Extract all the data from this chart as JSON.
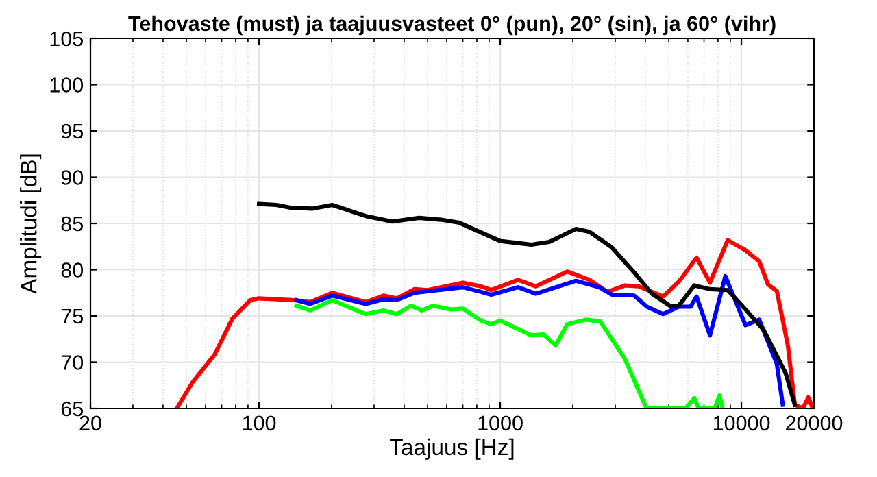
{
  "chart_data": {
    "type": "line",
    "title": "Tehovaste (must) ja taajuusvasteet 0° (pun), 20° (sin), ja 60° (vihr)",
    "xlabel": "Taajuus [Hz]",
    "ylabel": "Amplitudi [dB]",
    "log": "x",
    "grid": true,
    "legend": false,
    "marker": "none",
    "line_style": "solid",
    "xlim": [
      20,
      20000
    ],
    "xticks": [
      20,
      100,
      1000,
      10000,
      20000
    ],
    "ylim": [
      65,
      105
    ],
    "yticks": [
      65,
      70,
      75,
      80,
      85,
      90,
      95,
      100,
      105
    ],
    "series": [
      {
        "color": "#ff0000",
        "x": [
          45.6,
          52.9,
          65.4,
          77.5,
          91.9,
          100,
          140,
          163,
          201,
          277,
          328,
          372,
          441,
          500,
          700,
          833,
          918,
          1186,
          1406,
          1896,
          2345,
          2782,
          3298,
          3748,
          4736,
          5503,
          6520,
          7410,
          8780,
          10400,
          11860,
          12900,
          14030,
          15590,
          16660,
          18000,
          18950,
          19800
        ],
        "values": [
          65,
          67.8,
          70.8,
          74.7,
          76.7,
          76.9,
          76.7,
          76.5,
          77.5,
          76.5,
          77.2,
          76.9,
          77.9,
          77.8,
          78.6,
          78.2,
          77.8,
          78.9,
          78.2,
          79.8,
          78.9,
          77.6,
          78.3,
          78.2,
          77.1,
          78.7,
          81.3,
          78.6,
          83.2,
          82.1,
          80.9,
          78.4,
          77.7,
          71.8,
          65.4,
          65,
          66.2,
          65
        ]
      },
      {
        "color": "#0000ff",
        "x": [
          143,
          163,
          201,
          277,
          328,
          372,
          441,
          700,
          833,
          918,
          1186,
          1406,
          2063,
          2574,
          2904,
          3594,
          4058,
          4736,
          5503,
          6161,
          6520,
          7410,
          8580,
          10400,
          11860,
          14030,
          14850
        ],
        "values": [
          76.7,
          76.3,
          77.2,
          76.3,
          76.8,
          76.7,
          77.5,
          78.1,
          77.6,
          77.3,
          78.1,
          77.4,
          78.8,
          78.1,
          77.3,
          77.2,
          76.0,
          75.2,
          76.0,
          76.0,
          77.1,
          72.9,
          79.3,
          74.0,
          74.6,
          69.8,
          65.4
        ]
      },
      {
        "color": "#00ff00",
        "x": [
          143,
          163,
          201,
          277,
          328,
          372,
          427,
          474,
          527,
          625,
          700,
          833,
          918,
          1000,
          1347,
          1516,
          1697,
          1896,
          2265,
          2604,
          3298,
          4043,
          5865,
          6380,
          6650,
          7750,
          8120,
          8360
        ],
        "values": [
          76.1,
          75.6,
          76.7,
          75.2,
          75.6,
          75.2,
          76.1,
          75.6,
          76.1,
          75.7,
          75.8,
          74.5,
          74.1,
          74.5,
          72.9,
          73.0,
          71.8,
          74.1,
          74.6,
          74.4,
          70.3,
          65.0,
          65,
          66.1,
          65,
          65,
          66.4,
          65
        ]
      },
      {
        "color": "#000000",
        "x": [
          100,
          118,
          135,
          166,
          201,
          277,
          357,
          461,
          569,
          673,
          742,
          1000,
          1347,
          1598,
          2063,
          2345,
          2904,
          3594,
          4258,
          5056,
          5503,
          6380,
          7410,
          8780,
          10400,
          12360,
          15270,
          16660
        ],
        "values": [
          87.1,
          87.0,
          86.7,
          86.6,
          87.0,
          85.8,
          85.2,
          85.6,
          85.4,
          85.1,
          84.6,
          83.1,
          82.7,
          83.0,
          84.4,
          84.1,
          82.4,
          79.7,
          77.4,
          76.1,
          76.1,
          78.3,
          77.9,
          77.8,
          75.7,
          73.5,
          68.8,
          65.4
        ]
      }
    ]
  }
}
